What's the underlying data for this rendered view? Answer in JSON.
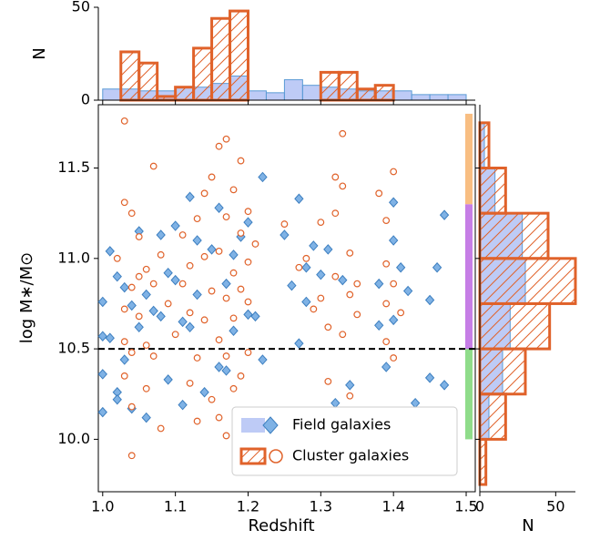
{
  "chart_data": [
    {
      "type": "scatter",
      "x_label": "Redshift",
      "y_label": "log M∗/M⊙",
      "xlim": [
        0.994,
        1.5125
      ],
      "ylim": [
        9.71,
        11.85
      ],
      "xticks": [
        {
          "value": 1.0,
          "label": "1.0"
        },
        {
          "value": 1.1,
          "label": "1.1"
        },
        {
          "value": 1.2,
          "label": "1.2"
        },
        {
          "value": 1.3,
          "label": "1.3"
        },
        {
          "value": 1.4,
          "label": "1.4"
        },
        {
          "value": 1.5,
          "label": "1.5"
        }
      ],
      "yticks": [
        {
          "value": 10.0,
          "label": "10.0"
        },
        10.5,
        {
          "value": 11.0,
          "label": "11.0"
        },
        11.5
      ],
      "hline": 10.5,
      "legend": "lower right",
      "color_bands": [
        {
          "range": [
            10.0,
            10.5
          ],
          "color": "#8fdc8a"
        },
        {
          "range": [
            10.5,
            11.3
          ],
          "color": "#c67ee6"
        },
        {
          "range": [
            11.3,
            11.8
          ],
          "color": "#f8be82"
        }
      ],
      "series": [
        {
          "name": "Field galaxies",
          "color": "#5b9bd5",
          "x": [
            1.0,
            1.0,
            1.0,
            1.0,
            1.01,
            1.01,
            1.02,
            1.02,
            1.02,
            1.03,
            1.03,
            1.04,
            1.04,
            1.05,
            1.05,
            1.06,
            1.06,
            1.07,
            1.08,
            1.08,
            1.09,
            1.09,
            1.1,
            1.1,
            1.11,
            1.11,
            1.12,
            1.12,
            1.13,
            1.13,
            1.14,
            1.15,
            1.16,
            1.16,
            1.17,
            1.17,
            1.18,
            1.18,
            1.19,
            1.2,
            1.2,
            1.21,
            1.22,
            1.22,
            1.25,
            1.26,
            1.27,
            1.27,
            1.28,
            1.28,
            1.29,
            1.3,
            1.31,
            1.32,
            1.33,
            1.34,
            1.38,
            1.38,
            1.39,
            1.4,
            1.4,
            1.4,
            1.41,
            1.42,
            1.43,
            1.45,
            1.45,
            1.46,
            1.47,
            1.47
          ],
          "values": [
            10.15,
            10.36,
            10.57,
            10.76,
            11.04,
            10.56,
            10.26,
            10.22,
            10.9,
            10.84,
            10.44,
            10.74,
            10.17,
            11.15,
            10.62,
            10.12,
            10.8,
            10.71,
            11.13,
            10.68,
            10.33,
            10.92,
            11.18,
            10.88,
            10.19,
            10.65,
            11.34,
            10.62,
            11.1,
            10.8,
            10.26,
            11.05,
            10.4,
            11.28,
            10.86,
            10.38,
            11.02,
            10.6,
            11.12,
            10.69,
            11.2,
            10.68,
            11.45,
            10.44,
            11.13,
            10.85,
            11.33,
            10.53,
            10.76,
            10.95,
            11.07,
            10.91,
            11.05,
            10.2,
            10.88,
            10.3,
            10.63,
            10.86,
            10.4,
            11.1,
            11.31,
            10.66,
            10.95,
            10.82,
            10.2,
            10.34,
            10.77,
            10.95,
            10.3,
            11.24
          ]
        },
        {
          "name": "Cluster galaxies",
          "color": "#e0622a",
          "x": [
            1.03,
            1.04,
            1.03,
            1.04,
            1.02,
            1.03,
            1.03,
            1.04,
            1.03,
            1.04,
            1.04,
            1.05,
            1.05,
            1.05,
            1.06,
            1.06,
            1.06,
            1.07,
            1.07,
            1.07,
            1.08,
            1.08,
            1.09,
            1.1,
            1.11,
            1.11,
            1.12,
            1.12,
            1.12,
            1.13,
            1.13,
            1.13,
            1.14,
            1.14,
            1.14,
            1.15,
            1.15,
            1.15,
            1.16,
            1.16,
            1.16,
            1.16,
            1.17,
            1.17,
            1.17,
            1.17,
            1.17,
            1.18,
            1.18,
            1.18,
            1.18,
            1.19,
            1.19,
            1.19,
            1.2,
            1.2,
            1.2,
            1.2,
            1.21,
            1.19,
            1.25,
            1.27,
            1.28,
            1.29,
            1.3,
            1.3,
            1.31,
            1.31,
            1.32,
            1.32,
            1.32,
            1.33,
            1.33,
            1.33,
            1.34,
            1.34,
            1.35,
            1.35,
            1.34,
            1.39,
            1.39,
            1.39,
            1.4,
            1.39,
            1.38,
            1.4,
            1.41,
            1.4
          ],
          "values": [
            11.76,
            9.91,
            11.31,
            11.25,
            11.0,
            10.72,
            10.54,
            10.48,
            10.35,
            10.18,
            10.84,
            11.12,
            10.9,
            10.68,
            10.52,
            10.94,
            10.28,
            11.51,
            10.86,
            10.46,
            10.06,
            11.02,
            10.75,
            10.58,
            10.86,
            11.13,
            10.31,
            10.7,
            10.96,
            11.22,
            10.45,
            10.1,
            11.01,
            10.66,
            11.36,
            10.22,
            10.82,
            11.45,
            11.04,
            10.55,
            11.62,
            10.12,
            11.66,
            10.78,
            10.46,
            11.23,
            10.02,
            10.92,
            10.67,
            11.38,
            10.28,
            11.14,
            10.83,
            10.35,
            11.26,
            10.76,
            10.48,
            10.98,
            11.08,
            11.54,
            11.19,
            10.95,
            11.0,
            10.72,
            11.2,
            10.78,
            10.32,
            10.62,
            10.9,
            11.45,
            11.25,
            11.69,
            10.58,
            11.4,
            10.8,
            10.24,
            10.69,
            10.86,
            11.03,
            10.97,
            10.75,
            10.54,
            11.48,
            11.21,
            11.36,
            10.86,
            10.7,
            10.45
          ]
        }
      ]
    },
    {
      "type": "histogram",
      "y_label": "N",
      "ylim": [
        0,
        50
      ],
      "yticks": [
        0,
        50
      ],
      "bins": [
        1.0,
        1.025,
        1.05,
        1.075,
        1.1,
        1.125,
        1.15,
        1.175,
        1.2,
        1.225,
        1.25,
        1.275,
        1.3,
        1.325,
        1.35,
        1.375,
        1.4,
        1.425,
        1.45,
        1.475,
        1.5
      ],
      "series": [
        {
          "color": "#5b9bd5",
          "values": [
            6,
            6,
            5,
            5,
            7,
            7,
            9,
            13,
            5,
            4,
            11,
            8,
            7,
            6,
            5,
            5,
            5,
            3,
            3,
            3
          ]
        },
        {
          "color": "#e0622a",
          "values": [
            0,
            26,
            20,
            2,
            7,
            28,
            44,
            48,
            0,
            0,
            0,
            0,
            15,
            15,
            6,
            8,
            0,
            0,
            0,
            0
          ]
        }
      ]
    },
    {
      "type": "histogram",
      "orientation": "horizontal",
      "x_label": "N",
      "xlim": [
        0,
        63
      ],
      "xticks": [
        0,
        50
      ],
      "bins": [
        9.75,
        10.0,
        10.25,
        10.5,
        10.75,
        11.0,
        11.25,
        11.5,
        11.75
      ],
      "series": [
        {
          "color": "#5b9bd5",
          "values": [
            0,
            6,
            15,
            20,
            30,
            28,
            10,
            3
          ]
        },
        {
          "color": "#e0622a",
          "values": [
            4,
            17,
            30,
            46,
            63,
            45,
            17,
            6
          ]
        }
      ]
    }
  ]
}
